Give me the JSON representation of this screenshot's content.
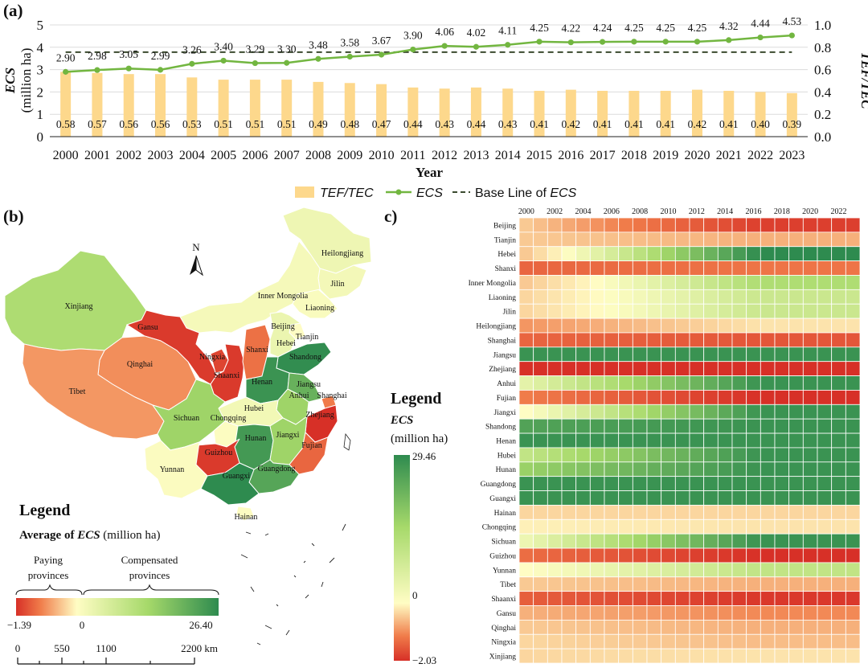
{
  "panels": {
    "a": "(a)",
    "b": "(b)",
    "c": "c)"
  },
  "colors": {
    "bar": "#fdd88c",
    "line": "#72b640",
    "baseline": "#3b4a2f",
    "neg_strong": "#d73027",
    "neg_mid": "#f07c4a",
    "neutral": "#fffdc4",
    "pos_mid": "#a6d96a",
    "pos_strong": "#2e8b4f"
  },
  "chart_data": [
    {
      "type": "bar+line",
      "panel": "(a)",
      "categories": [
        "2000",
        "2001",
        "2002",
        "2003",
        "2004",
        "2005",
        "2006",
        "2007",
        "2008",
        "2009",
        "2010",
        "2011",
        "2012",
        "2013",
        "2014",
        "2015",
        "2016",
        "2017",
        "2018",
        "2019",
        "2020",
        "2021",
        "2022",
        "2023"
      ],
      "series": [
        {
          "name": "TEF/TEC",
          "axis": "right",
          "style": "bar",
          "values": [
            0.58,
            0.57,
            0.56,
            0.56,
            0.53,
            0.51,
            0.51,
            0.51,
            0.49,
            0.48,
            0.47,
            0.44,
            0.43,
            0.44,
            0.43,
            0.41,
            0.42,
            0.41,
            0.41,
            0.41,
            0.42,
            0.41,
            0.4,
            0.39
          ],
          "labels": [
            "0.58",
            "0.57",
            "0.56",
            "0.56",
            "0.53",
            "0.51",
            "0.51",
            "0.51",
            "0.49",
            "0.48",
            "0.47",
            "0.44",
            "0.43",
            "0.44",
            "0.43",
            "0.41",
            "0.42",
            "0.41",
            "0.41",
            "0.41",
            "0.42",
            "0.41",
            "0.40",
            "0.39"
          ]
        },
        {
          "name": "ECS",
          "axis": "left",
          "style": "line",
          "values": [
            2.9,
            2.98,
            3.05,
            2.99,
            3.26,
            3.4,
            3.29,
            3.3,
            3.48,
            3.58,
            3.67,
            3.9,
            4.06,
            4.02,
            4.11,
            4.25,
            4.22,
            4.24,
            4.25,
            4.25,
            4.25,
            4.32,
            4.44,
            4.53
          ],
          "labels": [
            "2.90",
            "2.98",
            "3.05",
            "2.99",
            "3.26",
            "3.40",
            "3.29",
            "3.30",
            "3.48",
            "3.58",
            "3.67",
            "3.90",
            "4.06",
            "4.02",
            "4.11",
            "4.25",
            "4.22",
            "4.24",
            "4.25",
            "4.25",
            "4.25",
            "4.32",
            "4.44",
            "4.53"
          ]
        },
        {
          "name": "Base Line of ECS",
          "axis": "left",
          "style": "dashed",
          "value": 3.78
        }
      ],
      "xlabel": "Year",
      "ylabel_italic": "ECS",
      "ylabel_unit": "(million ha)",
      "y2label": "TEF/TEC",
      "ylim": [
        0,
        5
      ],
      "y2lim": [
        0,
        1.0
      ],
      "yticks": [
        "0",
        "1",
        "2",
        "3",
        "4",
        "5"
      ],
      "y2ticks": [
        "0.0",
        "0.2",
        "0.4",
        "0.6",
        "0.8",
        "1.0"
      ],
      "legend": [
        {
          "label": "TEF/TEC",
          "italic": true
        },
        {
          "label": "ECS",
          "italic": true
        },
        {
          "label_prefix": "Base Line of ",
          "label_italic": "ECS"
        }
      ],
      "grid": true,
      "legend_position": "bottom"
    },
    {
      "type": "map",
      "panel": "(b)",
      "north": "N",
      "legend_title": "Legend",
      "legend_subtitle_italic": "ECS",
      "legend_subtitle_prefix": "Average of ",
      "legend_subtitle_suffix": " (million ha)",
      "group_paying": [
        "Paying",
        "provinces"
      ],
      "group_compensated": [
        "Compensated",
        "provinces"
      ],
      "scale_min": "−1.39",
      "scale_zero": "0",
      "scale_max": "26.40",
      "distance_ticks": [
        "0",
        "550",
        "1100",
        "2200 km"
      ],
      "provinces": [
        {
          "name": "Heilongjiang",
          "value": 2.5
        },
        {
          "name": "Jilin",
          "value": 1.8
        },
        {
          "name": "Liaoning",
          "value": 0.9
        },
        {
          "name": "Inner Mongolia",
          "value": 1.5
        },
        {
          "name": "Xinjiang",
          "value": 12.0
        },
        {
          "name": "Gansu",
          "value": -1.3
        },
        {
          "name": "Qinghai",
          "value": -0.6
        },
        {
          "name": "Tibet",
          "value": -0.55
        },
        {
          "name": "Ningxia",
          "value": -1.2
        },
        {
          "name": "Shaanxi",
          "value": -1.3
        },
        {
          "name": "Shanxi",
          "value": -0.8
        },
        {
          "name": "Beijing",
          "value": -0.5
        },
        {
          "name": "Tianjin",
          "value": 0.2
        },
        {
          "name": "Hebei",
          "value": 3.0
        },
        {
          "name": "Shandong",
          "value": 26.0
        },
        {
          "name": "Henan",
          "value": 25.0
        },
        {
          "name": "Jiangsu",
          "value": 20.0
        },
        {
          "name": "Anhui",
          "value": 14.0
        },
        {
          "name": "Shanghai",
          "value": -0.7
        },
        {
          "name": "Hubei",
          "value": 2.0
        },
        {
          "name": "Sichuan",
          "value": 14.0
        },
        {
          "name": "Chongqing",
          "value": 0.5
        },
        {
          "name": "Hunan",
          "value": 24.0
        },
        {
          "name": "Jiangxi",
          "value": 14.0
        },
        {
          "name": "Zhejiang",
          "value": -1.39
        },
        {
          "name": "Fujian",
          "value": -0.9
        },
        {
          "name": "Guizhou",
          "value": -1.3
        },
        {
          "name": "Yunnan",
          "value": 0.6
        },
        {
          "name": "Guangdong",
          "value": 22.0
        },
        {
          "name": "Guangxi",
          "value": 26.4
        },
        {
          "name": "Hainan",
          "value": 0.3
        }
      ]
    },
    {
      "type": "heatmap",
      "panel": "(c)",
      "legend_title": "Legend",
      "legend_subtitle_italic": "ECS",
      "legend_unit": "(million ha)",
      "scale_max": "29.46",
      "scale_zero": "0",
      "scale_min": "−2.03",
      "years": [
        "2000",
        "2001",
        "2002",
        "2003",
        "2004",
        "2005",
        "2006",
        "2007",
        "2008",
        "2009",
        "2010",
        "2011",
        "2012",
        "2013",
        "2014",
        "2015",
        "2016",
        "2017",
        "2018",
        "2019",
        "2020",
        "2021",
        "2022",
        "2023"
      ],
      "year_labels": [
        "2000",
        "2002",
        "2004",
        "2006",
        "2008",
        "2010",
        "2012",
        "2014",
        "2016",
        "2018",
        "2020",
        "2022"
      ],
      "provinces": [
        "Beijing",
        "Tianjin",
        "Hebei",
        "Shanxi",
        "Inner Mongolia",
        "Liaoning",
        "Jilin",
        "Heilongjiang",
        "Shanghai",
        "Jiangsu",
        "Zhejiang",
        "Anhui",
        "Fujian",
        "Jiangxi",
        "Shandong",
        "Henan",
        "Hubei",
        "Hunan",
        "Guangdong",
        "Guangxi",
        "Hainan",
        "Chongqing",
        "Sichuan",
        "Guizhou",
        "Yunnan",
        "Tibet",
        "Shaanxi",
        "Gansu",
        "Qinghai",
        "Ningxia",
        "Xinjiang"
      ],
      "profiles": [
        [
          -0.2,
          -0.9
        ],
        [
          -0.2,
          -0.3
        ],
        [
          -0.2,
          1.0
        ],
        [
          -0.65,
          -0.55
        ],
        [
          -0.2,
          0.45
        ],
        [
          -0.15,
          0.3
        ],
        [
          -0.15,
          0.3
        ],
        [
          -0.4,
          -0.1
        ],
        [
          -0.65,
          -0.75
        ],
        [
          0.95,
          0.95
        ],
        [
          -1.0,
          -1.0
        ],
        [
          0.15,
          0.95
        ],
        [
          -0.5,
          -1.0
        ],
        [
          0.0,
          0.95
        ],
        [
          0.85,
          0.95
        ],
        [
          0.95,
          0.95
        ],
        [
          0.35,
          0.95
        ],
        [
          0.55,
          0.95
        ],
        [
          0.95,
          0.95
        ],
        [
          0.95,
          0.95
        ],
        [
          -0.15,
          -0.15
        ],
        [
          -0.05,
          -0.1
        ],
        [
          0.1,
          0.95
        ],
        [
          -0.6,
          -1.0
        ],
        [
          0.0,
          0.35
        ],
        [
          -0.2,
          -0.3
        ],
        [
          -0.7,
          -0.95
        ],
        [
          -0.3,
          -0.45
        ],
        [
          -0.2,
          -0.3
        ],
        [
          -0.15,
          -0.25
        ],
        [
          -0.15,
          -0.1
        ]
      ]
    }
  ]
}
